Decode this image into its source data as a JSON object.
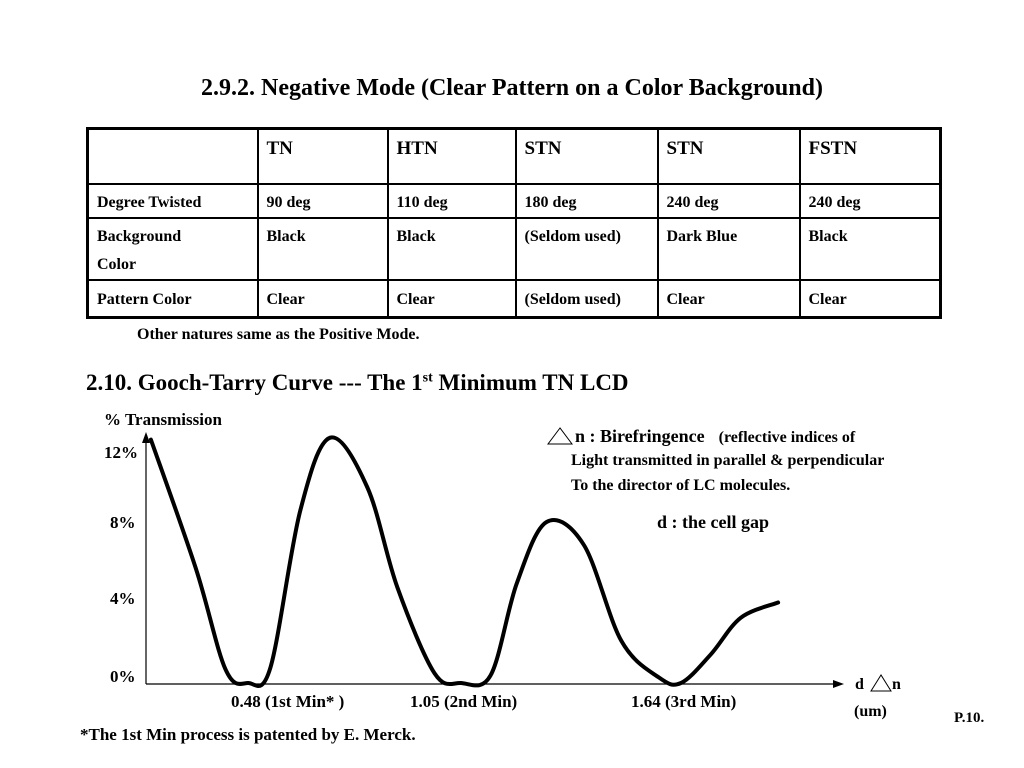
{
  "title": "2.9.2. Negative Mode (Clear Pattern on a Color Background)",
  "table": {
    "headers": [
      "",
      "TN",
      "HTN",
      "STN",
      "STN",
      "FSTN"
    ],
    "rows": [
      {
        "label": "Degree Twisted",
        "cells": [
          "90 deg",
          "110 deg",
          "180 deg",
          "240 deg",
          "240 deg"
        ]
      },
      {
        "label_line1": "Background",
        "label_line2": "Color",
        "cells": [
          "Black",
          "Black",
          "(Seldom used)",
          "Dark Blue",
          "Black"
        ]
      },
      {
        "label": "Pattern Color",
        "cells": [
          "Clear",
          "Clear",
          "(Seldom used)",
          "Clear",
          "Clear"
        ]
      }
    ]
  },
  "table_note": "Other natures same as the Positive Mode.",
  "section2": {
    "title_prefix": "2.10. Gooch-Tarry Curve --- The 1",
    "title_sup": "st",
    "title_suffix": " Minimum TN LCD"
  },
  "legend": {
    "n_label": "n :  Birefringence",
    "n_note": "(reflective indices of",
    "line2": "Light transmitted in parallel & perpendicular",
    "line3": "To the director of LC molecules.",
    "d_label": "d :  the cell gap"
  },
  "chart_data": {
    "type": "line",
    "ylabel": "% Transmission",
    "y_ticks": [
      "12%",
      "8%",
      "4%",
      "0%"
    ],
    "ylim": [
      0,
      13
    ],
    "x_ticks": [
      "0.48 (1st Min* )",
      "1.05 (2nd Min)",
      "1.64 (3rd Min)"
    ],
    "xlabel_d": "d",
    "xlabel_n": "n",
    "xlabel_unit": "(um)",
    "series": [
      {
        "x": [
          0.22,
          0.34,
          0.42,
          0.48,
          0.54,
          0.62,
          0.7,
          0.8,
          0.88,
          0.98,
          1.05,
          1.13,
          1.2,
          1.28,
          1.38,
          1.48,
          1.58,
          1.64,
          1.72,
          1.8,
          1.9
        ],
        "y": [
          12.7,
          6.0,
          0.7,
          0.0,
          0.8,
          9.0,
          12.8,
          10.2,
          5.0,
          0.5,
          0.0,
          0.4,
          5.2,
          8.4,
          7.2,
          2.2,
          0.3,
          0.0,
          1.5,
          3.4,
          4.2
        ]
      }
    ],
    "grid": false
  },
  "page_number": "P.10.",
  "footnote": "*The 1st Min process is patented by E. Merck."
}
